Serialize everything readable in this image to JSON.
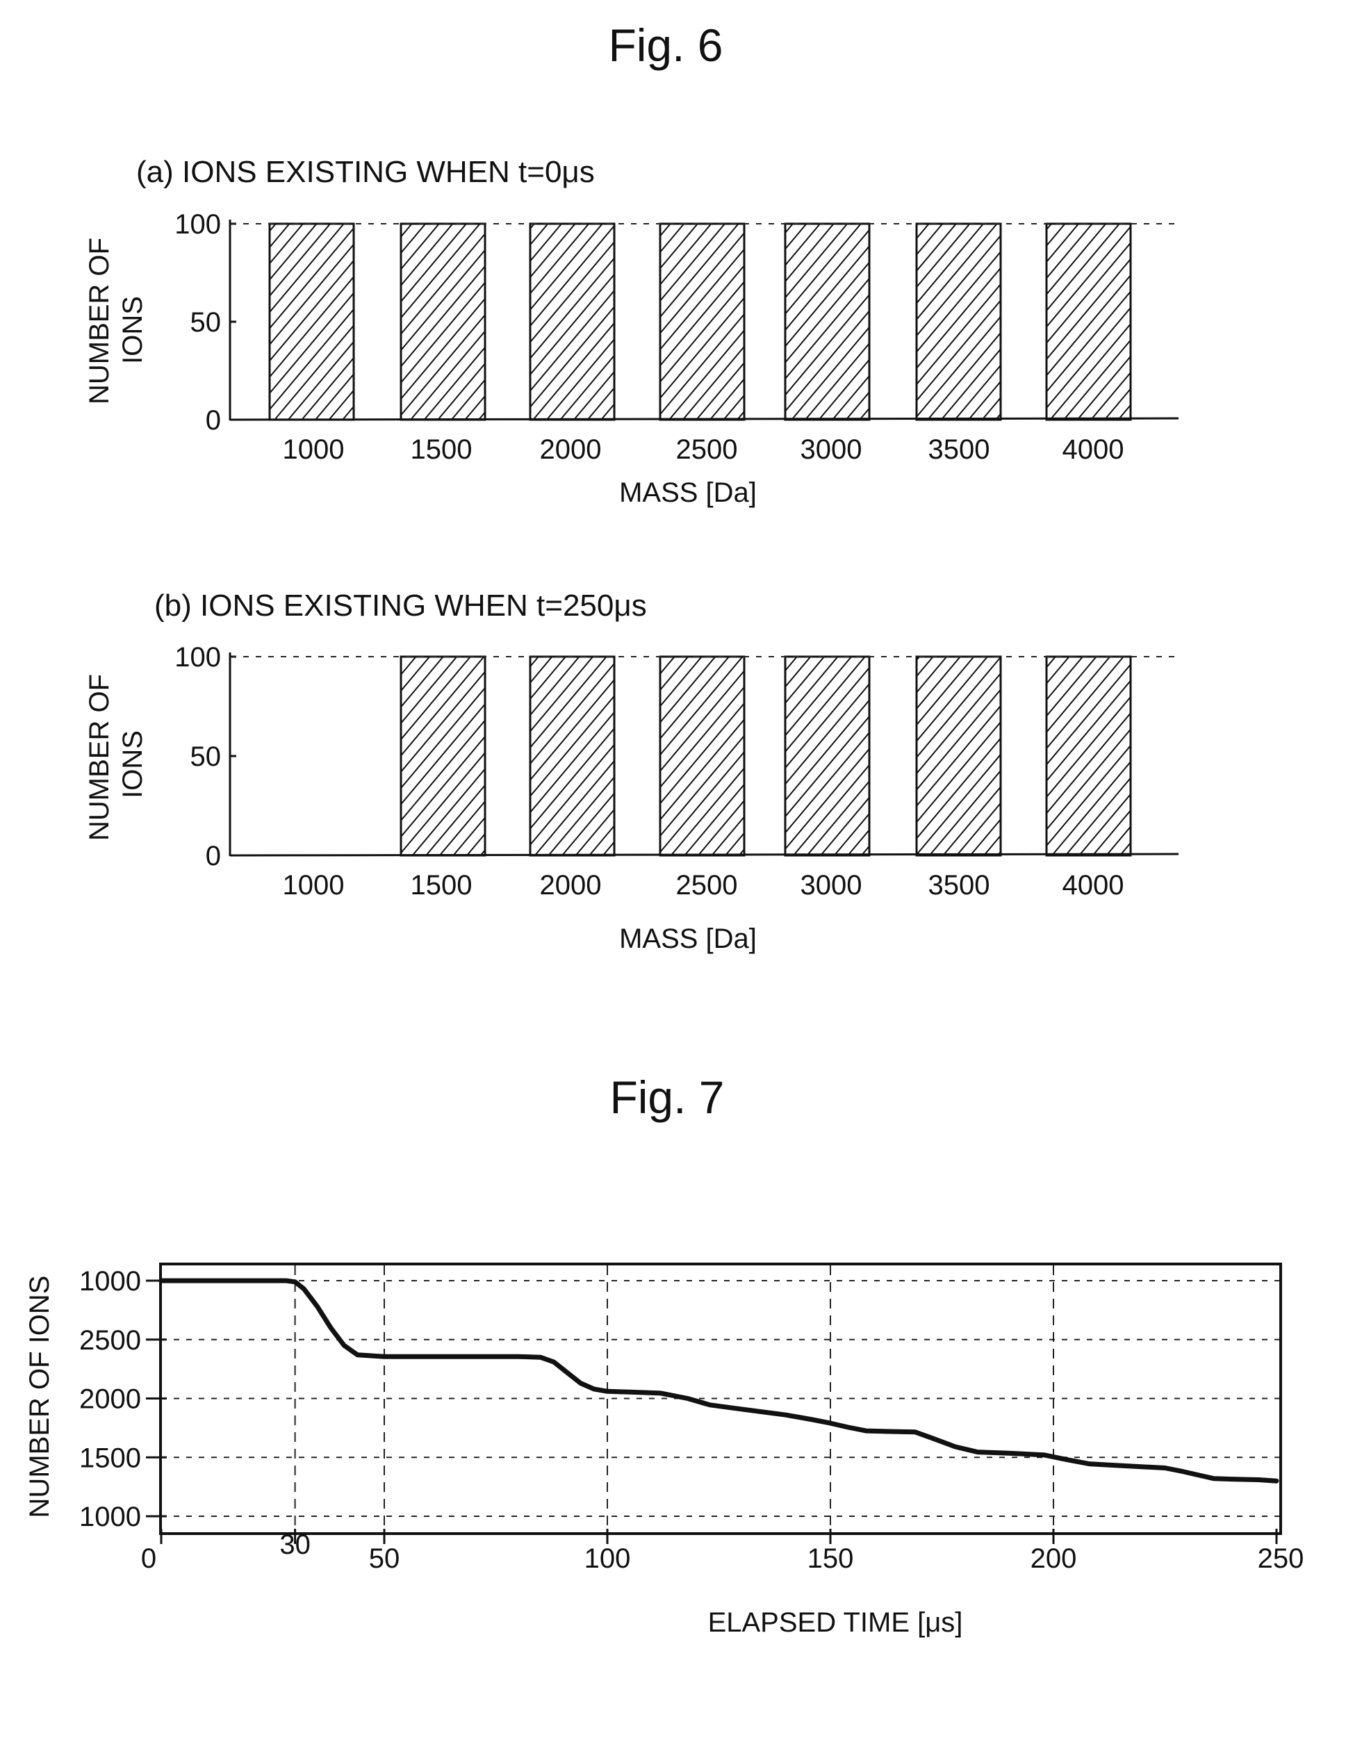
{
  "figures": {
    "fig6": {
      "title": "Fig. 6",
      "panel_a": {
        "title": "(a) IONS EXISTING WHEN t=0μs",
        "ylabel_line1": "NUMBER OF",
        "ylabel_line2": "IONS",
        "xlabel": "MASS [Da]"
      },
      "panel_b": {
        "title": "(b) IONS EXISTING WHEN t=250μs",
        "ylabel_line1": "NUMBER OF",
        "ylabel_line2": "IONS",
        "xlabel": "MASS [Da]"
      }
    },
    "fig7": {
      "title": "Fig. 7",
      "ylabel": "NUMBER OF IONS",
      "xlabel": "ELAPSED TIME [μs]"
    }
  },
  "colors": {
    "ink": "#111111",
    "background": "#ffffff"
  },
  "chart_data": [
    {
      "id": "fig6a",
      "type": "bar",
      "title": "(a) IONS EXISTING WHEN t=0μs",
      "xlabel": "MASS [Da]",
      "ylabel": "NUMBER OF IONS",
      "categories": [
        "1000",
        "1500",
        "2000",
        "2500",
        "3000",
        "3500",
        "4000"
      ],
      "values": [
        100,
        100,
        100,
        100,
        100,
        100,
        100
      ],
      "yticks": [
        "0",
        "50",
        "100"
      ],
      "ylim": [
        0,
        100
      ],
      "grid": "dashed line at 100",
      "bar_fill": "diagonal hatch"
    },
    {
      "id": "fig6b",
      "type": "bar",
      "title": "(b) IONS EXISTING WHEN t=250μs",
      "xlabel": "MASS [Da]",
      "ylabel": "NUMBER OF IONS",
      "categories": [
        "1000",
        "1500",
        "2000",
        "2500",
        "3000",
        "3500",
        "4000"
      ],
      "values": [
        0,
        100,
        100,
        100,
        100,
        100,
        100
      ],
      "yticks": [
        "0",
        "50",
        "100"
      ],
      "ylim": [
        0,
        100
      ],
      "grid": "dashed line at 100",
      "bar_fill": "diagonal hatch"
    },
    {
      "id": "fig7",
      "type": "line",
      "title": "Fig. 7",
      "xlabel": "ELAPSED TIME [μs]",
      "ylabel": "NUMBER OF IONS",
      "xticks": [
        "0",
        "30",
        "50",
        "100",
        "150",
        "200",
        "250"
      ],
      "xtick_values": [
        0,
        30,
        50,
        100,
        150,
        200,
        250
      ],
      "yticks": [
        "1000",
        "2500",
        "2000",
        "1500",
        "1000"
      ],
      "ytick_values": [
        3000,
        2500,
        2000,
        1500,
        1000
      ],
      "xlim": [
        0,
        250
      ],
      "ylim": [
        850,
        3250
      ],
      "grid": "dashed, both axes",
      "series": [
        {
          "name": "number of ions",
          "x": [
            0,
            10,
            20,
            28,
            30,
            32,
            35,
            38,
            41,
            44,
            50,
            60,
            70,
            80,
            85,
            88,
            91,
            94,
            97,
            100,
            105,
            112,
            118,
            123,
            130,
            140,
            146,
            150,
            154,
            158,
            163,
            169,
            173,
            178,
            183,
            190,
            198,
            203,
            208,
            215,
            225,
            229,
            233,
            236,
            240,
            246,
            250
          ],
          "y": [
            3000,
            3000,
            3000,
            3000,
            2990,
            2930,
            2780,
            2600,
            2450,
            2370,
            2355,
            2355,
            2355,
            2355,
            2350,
            2310,
            2220,
            2130,
            2080,
            2060,
            2055,
            2045,
            2000,
            1945,
            1910,
            1860,
            1820,
            1790,
            1755,
            1725,
            1720,
            1715,
            1660,
            1590,
            1545,
            1535,
            1520,
            1480,
            1445,
            1430,
            1410,
            1380,
            1345,
            1320,
            1315,
            1310,
            1300
          ]
        }
      ]
    }
  ]
}
